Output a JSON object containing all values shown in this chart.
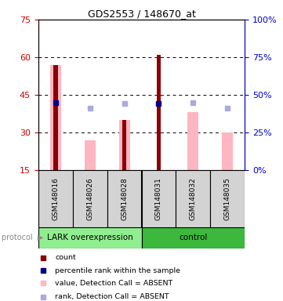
{
  "title": "GDS2553 / 148670_at",
  "samples": [
    "GSM148016",
    "GSM148026",
    "GSM148028",
    "GSM148031",
    "GSM148032",
    "GSM148035"
  ],
  "ylim_left": [
    15,
    75
  ],
  "ylim_right": [
    0,
    100
  ],
  "yticks_left": [
    15,
    30,
    45,
    60,
    75
  ],
  "yticks_right": [
    0,
    25,
    50,
    75,
    100
  ],
  "red_bars": {
    "GSM148016": 57,
    "GSM148028": 35,
    "GSM148031": 61
  },
  "pink_bars": {
    "GSM148016": 57,
    "GSM148026": 27,
    "GSM148028": 35,
    "GSM148032": 38,
    "GSM148035": 30
  },
  "blue_squares": {
    "GSM148016": 45,
    "GSM148031": 44
  },
  "light_blue_squares": {
    "GSM148026": 41,
    "GSM148028": 44,
    "GSM148032": 45,
    "GSM148035": 41
  },
  "red_bar_color": "#8B0000",
  "pink_bar_color": "#FFB6C1",
  "blue_square_color": "#00008B",
  "light_blue_square_color": "#AAAADD",
  "left_axis_color": "#CC0000",
  "right_axis_color": "#0000CC",
  "sample_box_color": "#D3D3D3",
  "lark_color": "#90EE90",
  "ctrl_color": "#3CB83C",
  "protocol_label_color": "#888888"
}
